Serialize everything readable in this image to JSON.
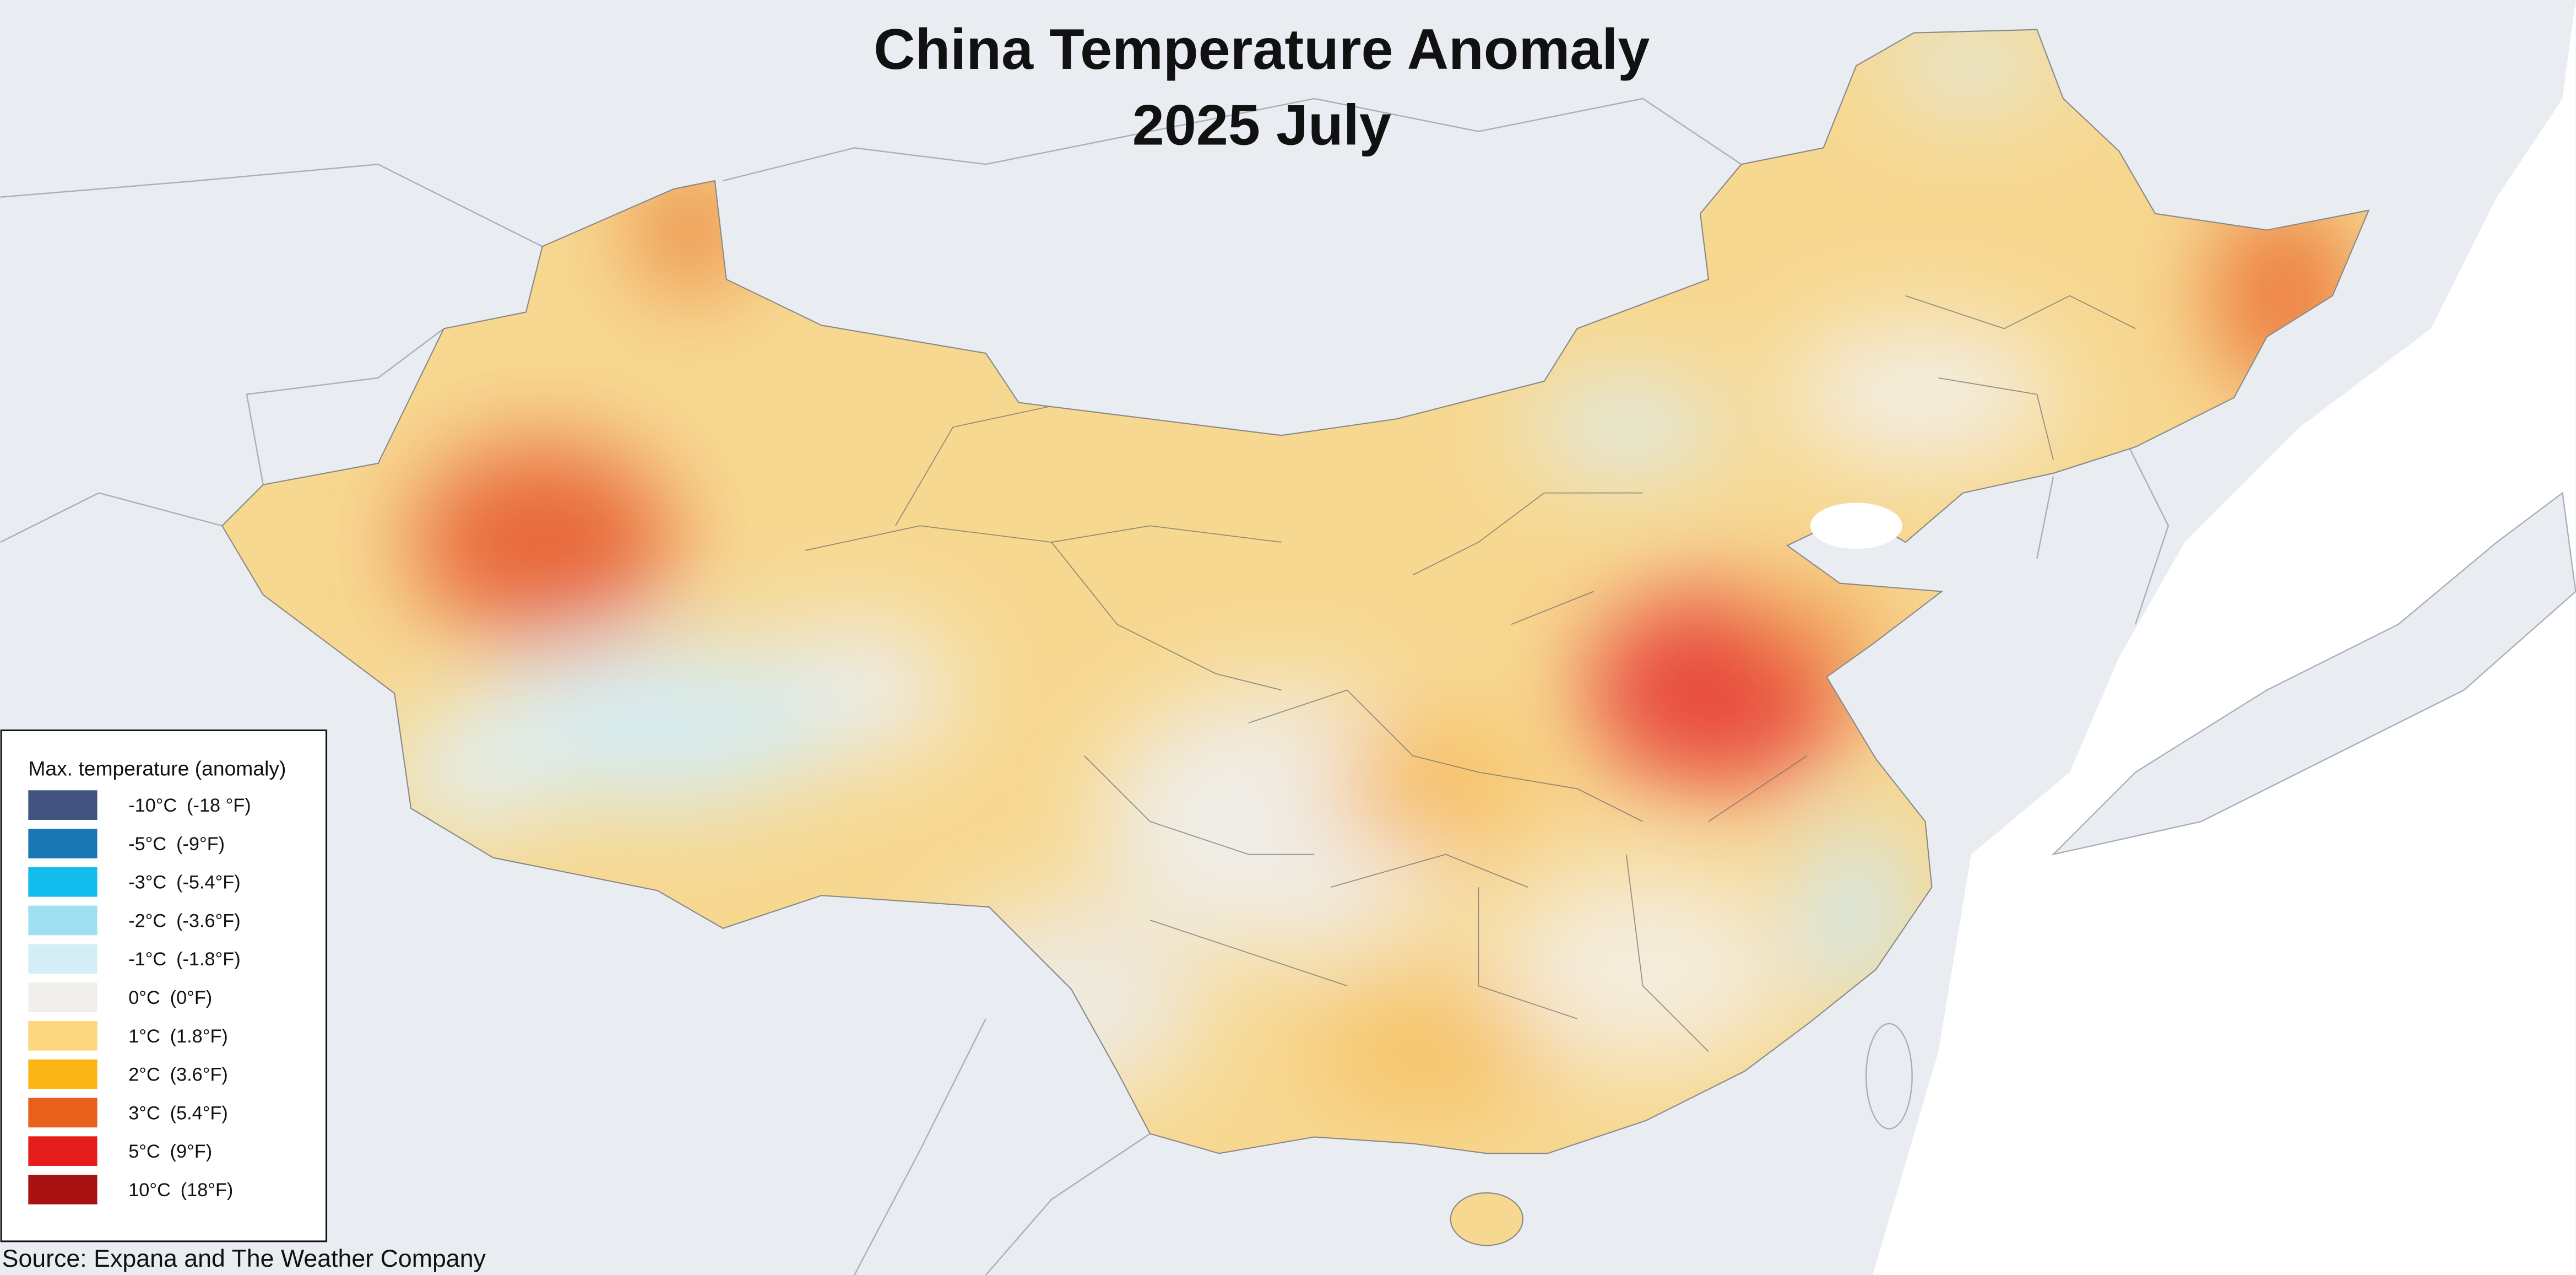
{
  "title": [
    "China Temperature Anomaly",
    "2025 July"
  ],
  "legend": {
    "title": "Max. temperature (anomaly)",
    "items": [
      {
        "celsius": "-10°C",
        "fahrenheit": "(-18 °F)",
        "color": "#43537f"
      },
      {
        "celsius": "-5°C",
        "fahrenheit": "(-9°F)",
        "color": "#1977b4"
      },
      {
        "celsius": "-3°C",
        "fahrenheit": "(-5.4°F)",
        "color": "#12bdee"
      },
      {
        "celsius": "-2°C",
        "fahrenheit": "(-3.6°F)",
        "color": "#9fdff1"
      },
      {
        "celsius": "-1°C",
        "fahrenheit": "(-1.8°F)",
        "color": "#d3eef7"
      },
      {
        "celsius": "0°C",
        "fahrenheit": "(0°F)",
        "color": "#f0efeb"
      },
      {
        "celsius": "1°C",
        "fahrenheit": "(1.8°F)",
        "color": "#fcd77f"
      },
      {
        "celsius": "2°C",
        "fahrenheit": "(3.6°F)",
        "color": "#fbb514"
      },
      {
        "celsius": "3°C",
        "fahrenheit": "(5.4°F)",
        "color": "#e9601c"
      },
      {
        "celsius": "5°C",
        "fahrenheit": "(9°F)",
        "color": "#e51d1d"
      },
      {
        "celsius": "10°C",
        "fahrenheit": "(18°F)",
        "color": "#a81212"
      }
    ]
  },
  "source": "Source: Expana and The Weather Company"
}
